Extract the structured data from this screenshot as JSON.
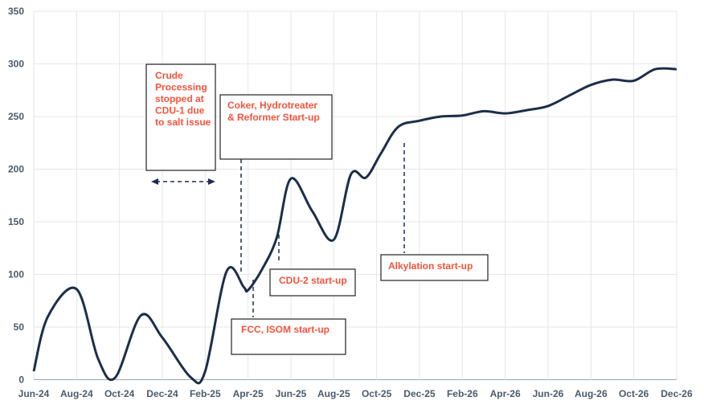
{
  "chart_data": {
    "type": "line",
    "x_ticks": [
      "Jun-24",
      "Aug-24",
      "Oct-24",
      "Dec-24",
      "Feb-25",
      "Apr-25",
      "Jun-25",
      "Aug-25",
      "Oct-25",
      "Dec-25",
      "Feb-26",
      "Apr-26",
      "Jun-26",
      "Aug-26",
      "Oct-26",
      "Dec-26"
    ],
    "y_ticks": [
      0,
      50,
      100,
      150,
      200,
      250,
      300,
      350
    ],
    "ylim": [
      0,
      350
    ],
    "grid": true,
    "legend": "none",
    "line_color": "#1c2e4a",
    "annotation_color": "#f2543d",
    "series": [
      {
        "x": [
          0,
          0.33,
          1,
          1.5,
          1.9,
          2.5,
          3.0,
          3.67,
          4.0,
          4.5,
          4.9,
          5.0,
          5.33,
          5.67,
          6.0,
          6.5,
          7.0,
          7.4,
          7.75,
          8.1,
          8.5,
          9.0,
          9.5,
          10.0,
          10.5,
          11.0,
          11.5,
          12.0,
          12.5,
          13.0,
          13.5,
          14.0,
          14.5,
          15.0
        ],
        "values": [
          8,
          60,
          86,
          20,
          2,
          61,
          40,
          2,
          8,
          103,
          88,
          85,
          105,
          135,
          191,
          160,
          133,
          195,
          192,
          215,
          240,
          246,
          250,
          251,
          255,
          253,
          256,
          260,
          270,
          280,
          285,
          284,
          295,
          295
        ]
      }
    ],
    "annotations": {
      "crude": {
        "lines": [
          "Crude",
          "Processing",
          "stopped at",
          "CDU-1 due",
          "to salt issue"
        ]
      },
      "coker": {
        "lines": [
          "Coker, Hydrotreater",
          "& Reformer Start-up"
        ]
      },
      "cdu2": {
        "lines": [
          "CDU-2 start-up"
        ]
      },
      "fcc": {
        "lines": [
          "FCC, ISOM start-up"
        ]
      },
      "alky": {
        "lines": [
          "Alkylation start-up"
        ]
      }
    }
  }
}
